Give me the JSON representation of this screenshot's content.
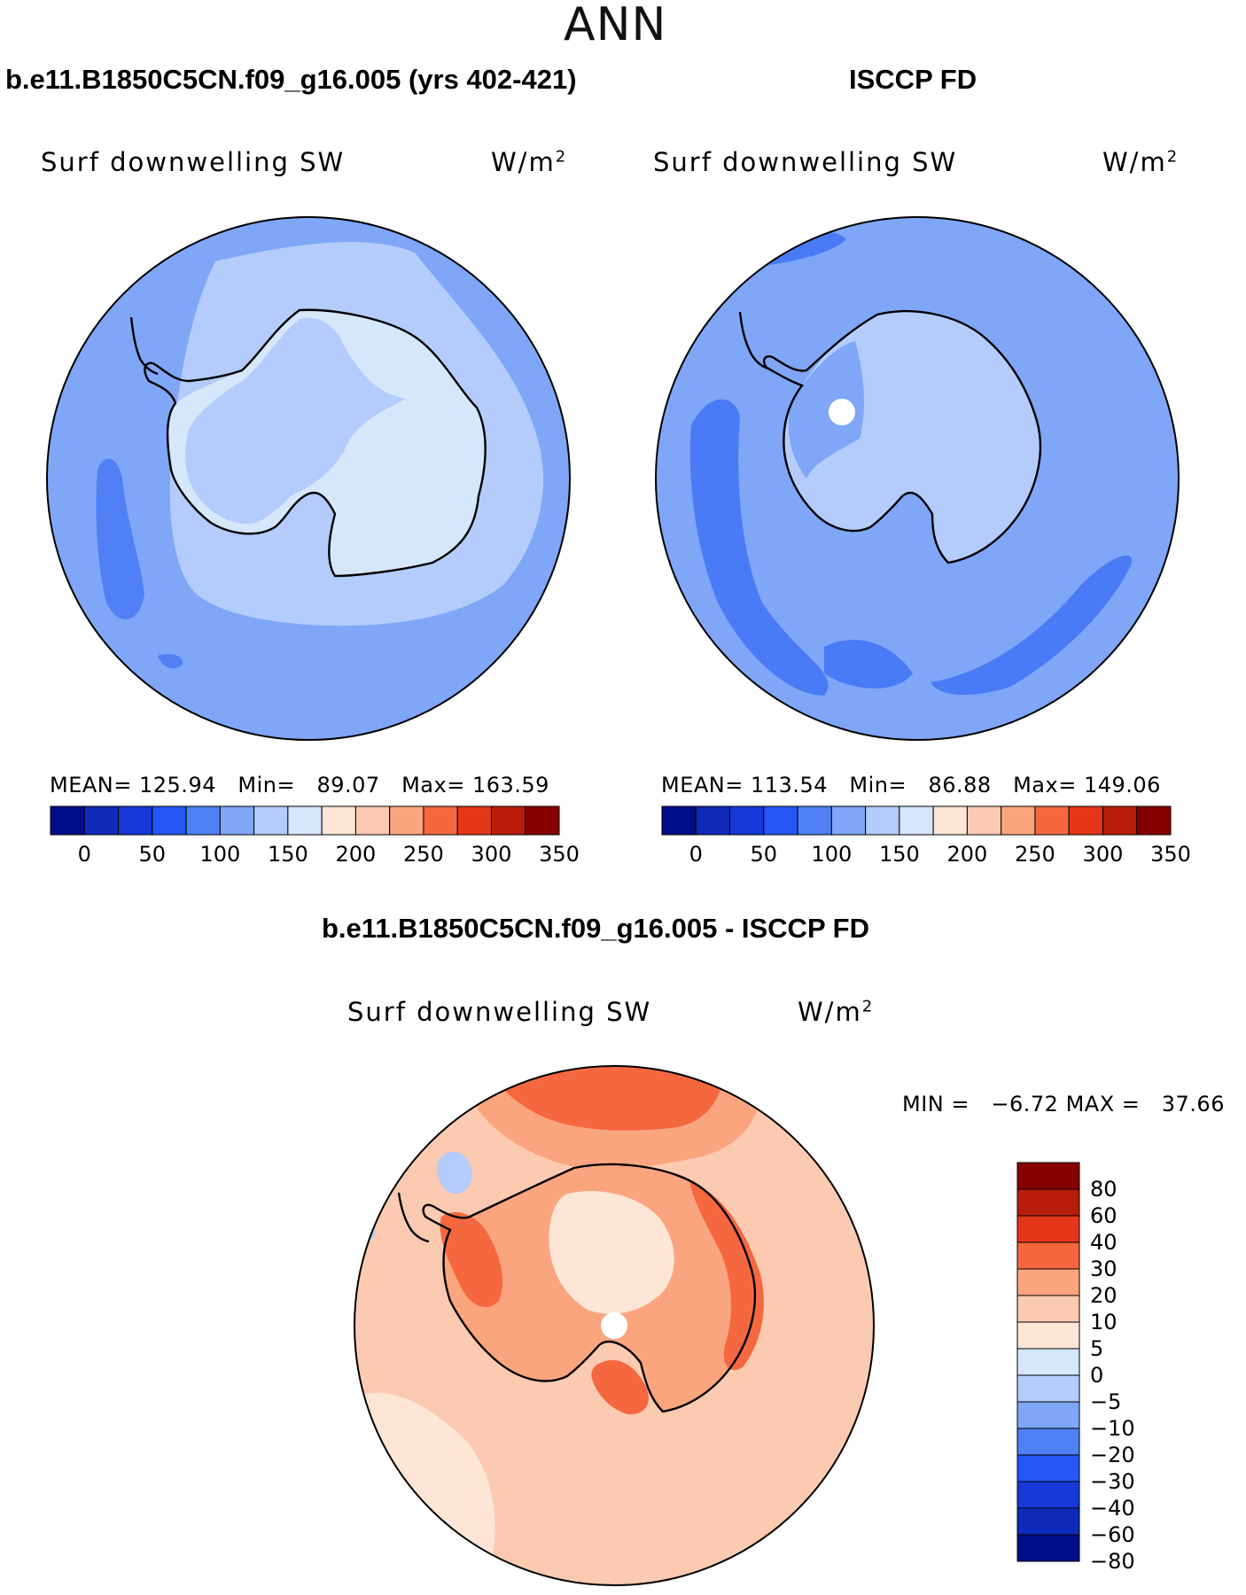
{
  "page": {
    "season": "ANN"
  },
  "panels": [
    {
      "id": "model",
      "case_title": "b.e11.B1850C5CN.f09_g16.005 (yrs 402-421)",
      "variable": "Surf  downwelling  SW",
      "units": "W/m",
      "units_exp": "2",
      "stats": {
        "mean_label": "MEAN=",
        "mean": "125.94",
        "min_label": "Min=",
        "min": "89.07",
        "max_label": "Max=",
        "max": "163.59"
      },
      "colors": {
        "ocean": "#7fa6f7",
        "inner": "#b3ccfb",
        "land": "#d6e6fb",
        "weak": "#4f80f6"
      }
    },
    {
      "id": "obs",
      "case_title": "ISCCP FD",
      "variable": "Surf  downwelling  SW",
      "units": "W/m",
      "units_exp": "2",
      "stats": {
        "mean_label": "MEAN=",
        "mean": "113.54",
        "min_label": "Min=",
        "min": "86.88",
        "max_label": "Max=",
        "max": "149.06"
      },
      "colors": {
        "ocean": "#7fa6f7",
        "inner": "#b3ccfb",
        "land": "#b3ccfb",
        "weak": "#4a7bf6"
      }
    }
  ],
  "diff_panel": {
    "case_title": "b.e11.B1850C5CN.f09_g16.005 - ISCCP FD",
    "variable": "Surf  downwelling  SW",
    "units": "W/m",
    "units_exp": "2",
    "min_label": "MIN =",
    "min": "−6.72",
    "max_label": "MAX =",
    "max": "37.66",
    "colors": {
      "base": "#fbcab0",
      "mid": "#fba57f",
      "strong": "#f5683f",
      "pale": "#fde6d5",
      "cool": "#b3ccfb"
    }
  },
  "abs_colorbar": {
    "colors": [
      "#000d8a",
      "#0f2ab9",
      "#1638d8",
      "#2457f5",
      "#4f80f6",
      "#7fa6f7",
      "#b3ccfb",
      "#d6e6fb",
      "#fde6d5",
      "#fbcab0",
      "#fba57f",
      "#f5683f",
      "#e4371a",
      "#b81d0b",
      "#870101"
    ],
    "labels": [
      "0",
      "50",
      "100",
      "150",
      "200",
      "250",
      "300",
      "350"
    ]
  },
  "diff_colorbar": {
    "colors": [
      "#870101",
      "#b81d0b",
      "#e4371a",
      "#f5683f",
      "#fba57f",
      "#fbcab0",
      "#fde6d5",
      "#d6e6fb",
      "#b3ccfb",
      "#7fa6f7",
      "#4f80f6",
      "#2457f5",
      "#1638d8",
      "#0f2ab9",
      "#000d8a"
    ],
    "labels": [
      "80",
      "60",
      "40",
      "30",
      "20",
      "10",
      "5",
      "0",
      "−5",
      "−10",
      "−20",
      "−30",
      "−40",
      "−60",
      "−80"
    ]
  }
}
